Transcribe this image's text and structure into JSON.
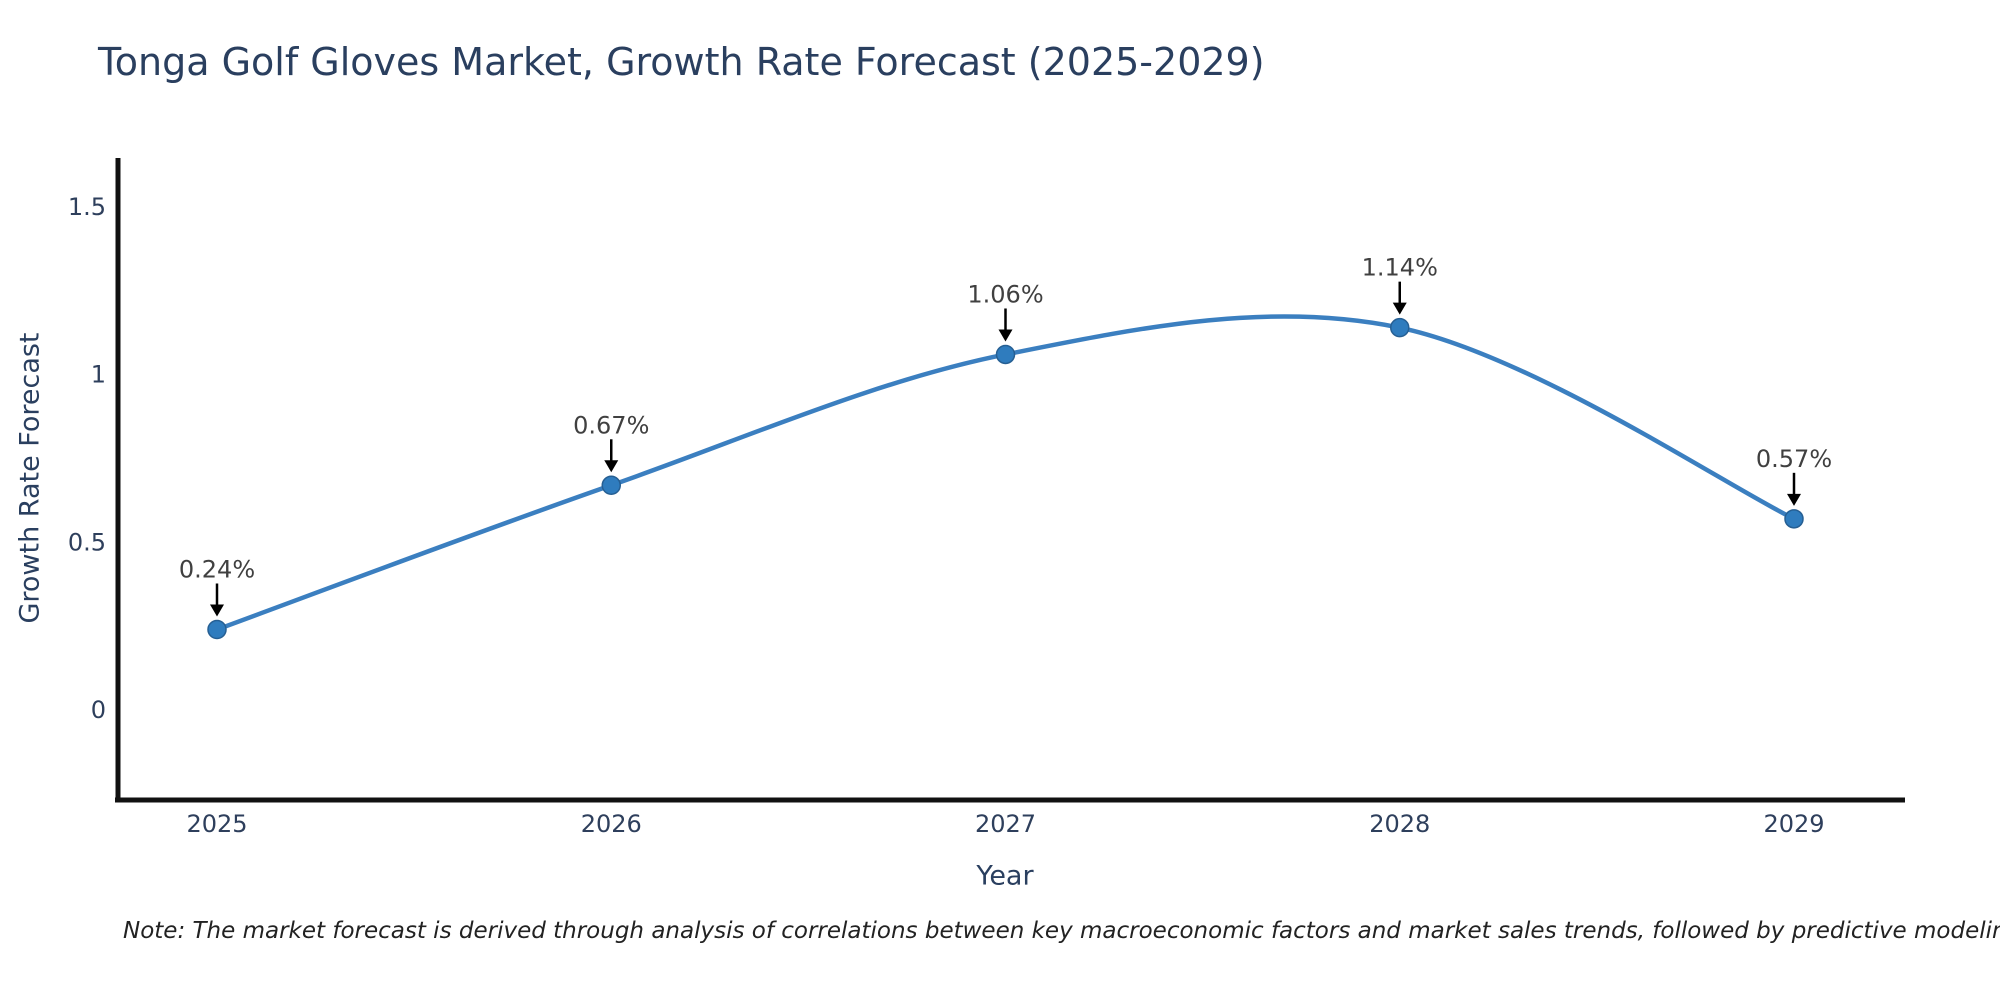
{
  "title": "Tonga Golf Gloves Market, Growth Rate Forecast (2025-2029)",
  "note": "Note: The market forecast is derived through analysis of correlations between key macroeconomic factors and market sales trends, followed by predictive modeling to project future sales",
  "chart_data": {
    "type": "line",
    "line_shape": "spline",
    "x": [
      2025,
      2026,
      2027,
      2028,
      2029
    ],
    "series": [
      {
        "name": "Growth Rate Forecast",
        "values": [
          0.24,
          0.67,
          1.06,
          1.14,
          0.57
        ]
      }
    ],
    "point_labels": [
      "0.24%",
      "0.67%",
      "1.06%",
      "1.14%",
      "0.57%"
    ],
    "xlabel": "Year",
    "ylabel": "Growth Rate Forecast",
    "xticks": [
      "2025",
      "2026",
      "2027",
      "2028",
      "2029"
    ],
    "yticks": [
      "0",
      "0.5",
      "1",
      "1.5"
    ],
    "ytick_values": [
      0,
      0.5,
      1,
      1.5
    ],
    "ylim": [
      -0.27,
      1.64
    ],
    "grid": false,
    "legend_position": "none",
    "colors": {
      "line": "#3b7fc0",
      "marker": "#2f7cbe",
      "marker_border": "#265f93",
      "axis": "#111111",
      "title_text": "#2a3f5f",
      "tick_text": "#2e3f5c",
      "annotation_text": "#404040",
      "arrow": "#000000",
      "background": "#ffffff"
    }
  }
}
